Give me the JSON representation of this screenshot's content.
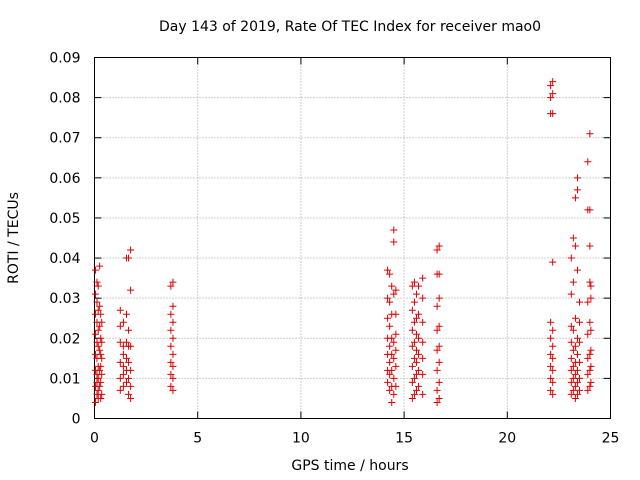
{
  "chart_data": {
    "type": "scatter",
    "title": "Day 143 of 2019, Rate Of TEC Index for receiver mao0",
    "xlabel": "GPS time / hours",
    "ylabel": "ROTI / TECUs",
    "xlim": [
      0,
      25
    ],
    "ylim": [
      0,
      0.09
    ],
    "xticks": [
      0,
      5,
      10,
      15,
      20,
      25
    ],
    "xtick_labels": [
      "0",
      "5",
      "10",
      "15",
      "20",
      "25"
    ],
    "yticks": [
      0,
      0.01,
      0.02,
      0.03,
      0.04,
      0.05,
      0.06,
      0.07,
      0.08,
      0.09
    ],
    "ytick_labels": [
      "0",
      "0.01",
      "0.02",
      "0.03",
      "0.04",
      "0.05",
      "0.06",
      "0.07",
      "0.08",
      "0.09"
    ],
    "grid": true,
    "marker": "plus",
    "color": "#e00000",
    "series": [
      {
        "name": "ROTI",
        "points": [
          [
            0.05,
            0.004
          ],
          [
            0.05,
            0.008
          ],
          [
            0.05,
            0.012
          ],
          [
            0.05,
            0.016
          ],
          [
            0.05,
            0.021
          ],
          [
            0.05,
            0.026
          ],
          [
            0.05,
            0.031
          ],
          [
            0.05,
            0.037
          ],
          [
            0.12,
            0.006
          ],
          [
            0.12,
            0.009
          ],
          [
            0.12,
            0.011
          ],
          [
            0.12,
            0.015
          ],
          [
            0.12,
            0.019
          ],
          [
            0.12,
            0.024
          ],
          [
            0.12,
            0.029
          ],
          [
            0.12,
            0.034
          ],
          [
            0.18,
            0.005
          ],
          [
            0.18,
            0.007
          ],
          [
            0.18,
            0.01
          ],
          [
            0.18,
            0.013
          ],
          [
            0.18,
            0.018
          ],
          [
            0.18,
            0.022
          ],
          [
            0.18,
            0.027
          ],
          [
            0.18,
            0.033
          ],
          [
            0.25,
            0.008
          ],
          [
            0.25,
            0.012
          ],
          [
            0.25,
            0.017
          ],
          [
            0.25,
            0.023
          ],
          [
            0.25,
            0.028
          ],
          [
            0.25,
            0.038
          ],
          [
            0.3,
            0.005
          ],
          [
            0.3,
            0.009
          ],
          [
            0.3,
            0.013
          ],
          [
            0.3,
            0.016
          ],
          [
            0.3,
            0.02
          ],
          [
            0.3,
            0.026
          ],
          [
            0.35,
            0.006
          ],
          [
            0.35,
            0.011
          ],
          [
            0.35,
            0.015
          ],
          [
            0.35,
            0.019
          ],
          [
            0.35,
            0.024
          ],
          [
            1.25,
            0.007
          ],
          [
            1.25,
            0.01
          ],
          [
            1.25,
            0.014
          ],
          [
            1.25,
            0.019
          ],
          [
            1.25,
            0.023
          ],
          [
            1.25,
            0.027
          ],
          [
            1.4,
            0.008
          ],
          [
            1.4,
            0.011
          ],
          [
            1.4,
            0.013
          ],
          [
            1.4,
            0.016
          ],
          [
            1.4,
            0.018
          ],
          [
            1.4,
            0.024
          ],
          [
            1.55,
            0.009
          ],
          [
            1.55,
            0.012
          ],
          [
            1.55,
            0.015
          ],
          [
            1.55,
            0.019
          ],
          [
            1.55,
            0.026
          ],
          [
            1.55,
            0.04
          ],
          [
            1.65,
            0.006
          ],
          [
            1.65,
            0.01
          ],
          [
            1.65,
            0.014
          ],
          [
            1.65,
            0.018
          ],
          [
            1.65,
            0.022
          ],
          [
            1.65,
            0.04
          ],
          [
            1.75,
            0.005
          ],
          [
            1.75,
            0.008
          ],
          [
            1.75,
            0.012
          ],
          [
            1.75,
            0.018
          ],
          [
            1.75,
            0.032
          ],
          [
            1.75,
            0.042
          ],
          [
            3.7,
            0.008
          ],
          [
            3.7,
            0.011
          ],
          [
            3.7,
            0.014
          ],
          [
            3.7,
            0.018
          ],
          [
            3.7,
            0.022
          ],
          [
            3.7,
            0.026
          ],
          [
            3.7,
            0.033
          ],
          [
            3.8,
            0.007
          ],
          [
            3.8,
            0.01
          ],
          [
            3.8,
            0.013
          ],
          [
            3.8,
            0.016
          ],
          [
            3.8,
            0.02
          ],
          [
            3.8,
            0.024
          ],
          [
            3.8,
            0.028
          ],
          [
            3.8,
            0.034
          ],
          [
            14.2,
            0.009
          ],
          [
            14.2,
            0.012
          ],
          [
            14.2,
            0.016
          ],
          [
            14.2,
            0.02
          ],
          [
            14.2,
            0.025
          ],
          [
            14.2,
            0.03
          ],
          [
            14.2,
            0.037
          ],
          [
            14.3,
            0.007
          ],
          [
            14.3,
            0.011
          ],
          [
            14.3,
            0.014
          ],
          [
            14.3,
            0.018
          ],
          [
            14.3,
            0.023
          ],
          [
            14.3,
            0.029
          ],
          [
            14.3,
            0.036
          ],
          [
            14.4,
            0.004
          ],
          [
            14.4,
            0.008
          ],
          [
            14.4,
            0.012
          ],
          [
            14.4,
            0.016
          ],
          [
            14.4,
            0.02
          ],
          [
            14.4,
            0.026
          ],
          [
            14.4,
            0.033
          ],
          [
            14.5,
            0.006
          ],
          [
            14.5,
            0.01
          ],
          [
            14.5,
            0.015
          ],
          [
            14.5,
            0.019
          ],
          [
            14.5,
            0.031
          ],
          [
            14.5,
            0.044
          ],
          [
            14.5,
            0.047
          ],
          [
            14.6,
            0.008
          ],
          [
            14.6,
            0.013
          ],
          [
            14.6,
            0.017
          ],
          [
            14.6,
            0.021
          ],
          [
            14.6,
            0.026
          ],
          [
            14.6,
            0.032
          ],
          [
            15.4,
            0.005
          ],
          [
            15.4,
            0.009
          ],
          [
            15.4,
            0.013
          ],
          [
            15.4,
            0.018
          ],
          [
            15.4,
            0.022
          ],
          [
            15.4,
            0.027
          ],
          [
            15.4,
            0.033
          ],
          [
            15.5,
            0.006
          ],
          [
            15.5,
            0.01
          ],
          [
            15.5,
            0.015
          ],
          [
            15.5,
            0.019
          ],
          [
            15.5,
            0.024
          ],
          [
            15.5,
            0.029
          ],
          [
            15.5,
            0.034
          ],
          [
            15.6,
            0.007
          ],
          [
            15.6,
            0.011
          ],
          [
            15.6,
            0.014
          ],
          [
            15.6,
            0.017
          ],
          [
            15.6,
            0.021
          ],
          [
            15.6,
            0.025
          ],
          [
            15.6,
            0.031
          ],
          [
            15.7,
            0.008
          ],
          [
            15.7,
            0.012
          ],
          [
            15.7,
            0.016
          ],
          [
            15.7,
            0.02
          ],
          [
            15.7,
            0.026
          ],
          [
            15.7,
            0.033
          ],
          [
            15.9,
            0.006
          ],
          [
            15.9,
            0.011
          ],
          [
            15.9,
            0.015
          ],
          [
            15.9,
            0.019
          ],
          [
            15.9,
            0.024
          ],
          [
            15.9,
            0.03
          ],
          [
            15.9,
            0.035
          ],
          [
            16.6,
            0.004
          ],
          [
            16.6,
            0.007
          ],
          [
            16.6,
            0.012
          ],
          [
            16.6,
            0.017
          ],
          [
            16.6,
            0.022
          ],
          [
            16.6,
            0.028
          ],
          [
            16.6,
            0.036
          ],
          [
            16.6,
            0.042
          ],
          [
            16.7,
            0.005
          ],
          [
            16.7,
            0.009
          ],
          [
            16.7,
            0.014
          ],
          [
            16.7,
            0.018
          ],
          [
            16.7,
            0.023
          ],
          [
            16.7,
            0.03
          ],
          [
            16.7,
            0.036
          ],
          [
            16.7,
            0.043
          ],
          [
            22.1,
            0.007
          ],
          [
            22.1,
            0.01
          ],
          [
            22.1,
            0.013
          ],
          [
            22.1,
            0.016
          ],
          [
            22.1,
            0.02
          ],
          [
            22.1,
            0.024
          ],
          [
            22.1,
            0.076
          ],
          [
            22.1,
            0.08
          ],
          [
            22.1,
            0.083
          ],
          [
            22.2,
            0.006
          ],
          [
            22.2,
            0.009
          ],
          [
            22.2,
            0.012
          ],
          [
            22.2,
            0.015
          ],
          [
            22.2,
            0.018
          ],
          [
            22.2,
            0.022
          ],
          [
            22.2,
            0.039
          ],
          [
            22.2,
            0.076
          ],
          [
            22.2,
            0.081
          ],
          [
            22.2,
            0.084
          ],
          [
            23.1,
            0.006
          ],
          [
            23.1,
            0.009
          ],
          [
            23.1,
            0.012
          ],
          [
            23.1,
            0.015
          ],
          [
            23.1,
            0.019
          ],
          [
            23.1,
            0.023
          ],
          [
            23.1,
            0.031
          ],
          [
            23.1,
            0.04
          ],
          [
            23.2,
            0.007
          ],
          [
            23.2,
            0.01
          ],
          [
            23.2,
            0.013
          ],
          [
            23.2,
            0.017
          ],
          [
            23.2,
            0.022
          ],
          [
            23.2,
            0.034
          ],
          [
            23.2,
            0.045
          ],
          [
            23.3,
            0.005
          ],
          [
            23.3,
            0.008
          ],
          [
            23.3,
            0.011
          ],
          [
            23.3,
            0.014
          ],
          [
            23.3,
            0.018
          ],
          [
            23.3,
            0.025
          ],
          [
            23.3,
            0.043
          ],
          [
            23.3,
            0.055
          ],
          [
            23.4,
            0.006
          ],
          [
            23.4,
            0.009
          ],
          [
            23.4,
            0.012
          ],
          [
            23.4,
            0.016
          ],
          [
            23.4,
            0.02
          ],
          [
            23.4,
            0.037
          ],
          [
            23.4,
            0.057
          ],
          [
            23.4,
            0.06
          ],
          [
            23.5,
            0.007
          ],
          [
            23.5,
            0.01
          ],
          [
            23.5,
            0.014
          ],
          [
            23.5,
            0.019
          ],
          [
            23.5,
            0.024
          ],
          [
            23.5,
            0.029
          ],
          [
            23.9,
            0.007
          ],
          [
            23.9,
            0.011
          ],
          [
            23.9,
            0.015
          ],
          [
            23.9,
            0.021
          ],
          [
            23.9,
            0.029
          ],
          [
            23.9,
            0.052
          ],
          [
            23.9,
            0.064
          ],
          [
            24.0,
            0.008
          ],
          [
            24.0,
            0.012
          ],
          [
            24.0,
            0.016
          ],
          [
            24.0,
            0.024
          ],
          [
            24.0,
            0.034
          ],
          [
            24.0,
            0.043
          ],
          [
            24.0,
            0.052
          ],
          [
            24.0,
            0.071
          ],
          [
            24.05,
            0.009
          ],
          [
            24.05,
            0.013
          ],
          [
            24.05,
            0.017
          ],
          [
            24.05,
            0.022
          ],
          [
            24.05,
            0.03
          ],
          [
            24.05,
            0.033
          ]
        ]
      }
    ]
  }
}
